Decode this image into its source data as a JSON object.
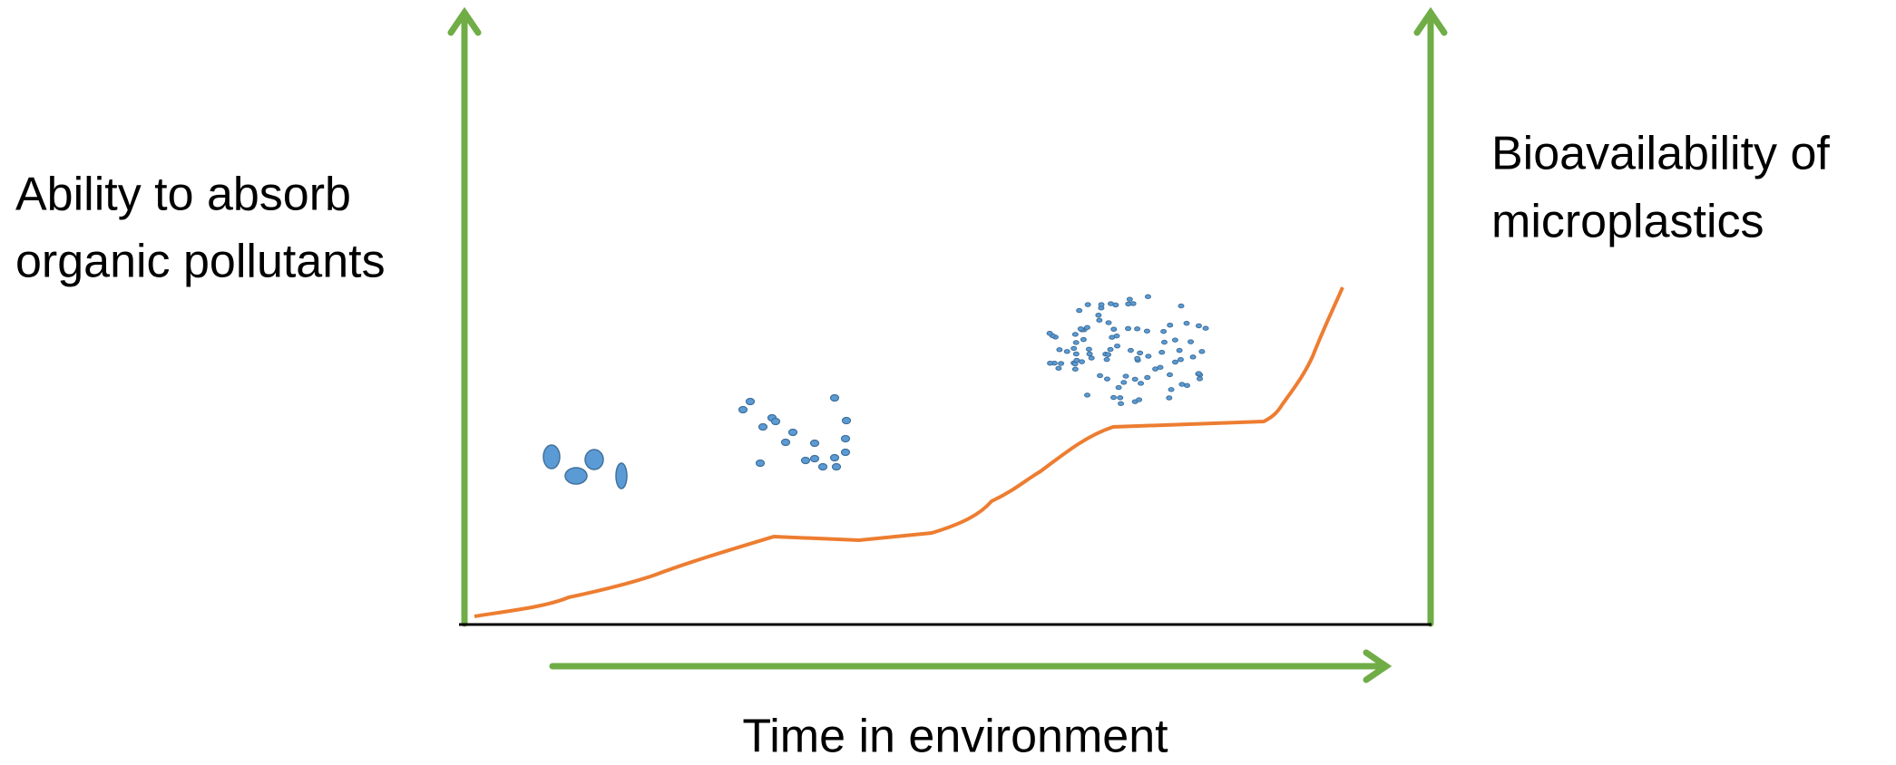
{
  "left_label": [
    "Ability to absorb",
    "organic pollutants"
  ],
  "right_label": [
    "Bioavailability of",
    "microplastics"
  ],
  "x_label": "Time in environment"
}
